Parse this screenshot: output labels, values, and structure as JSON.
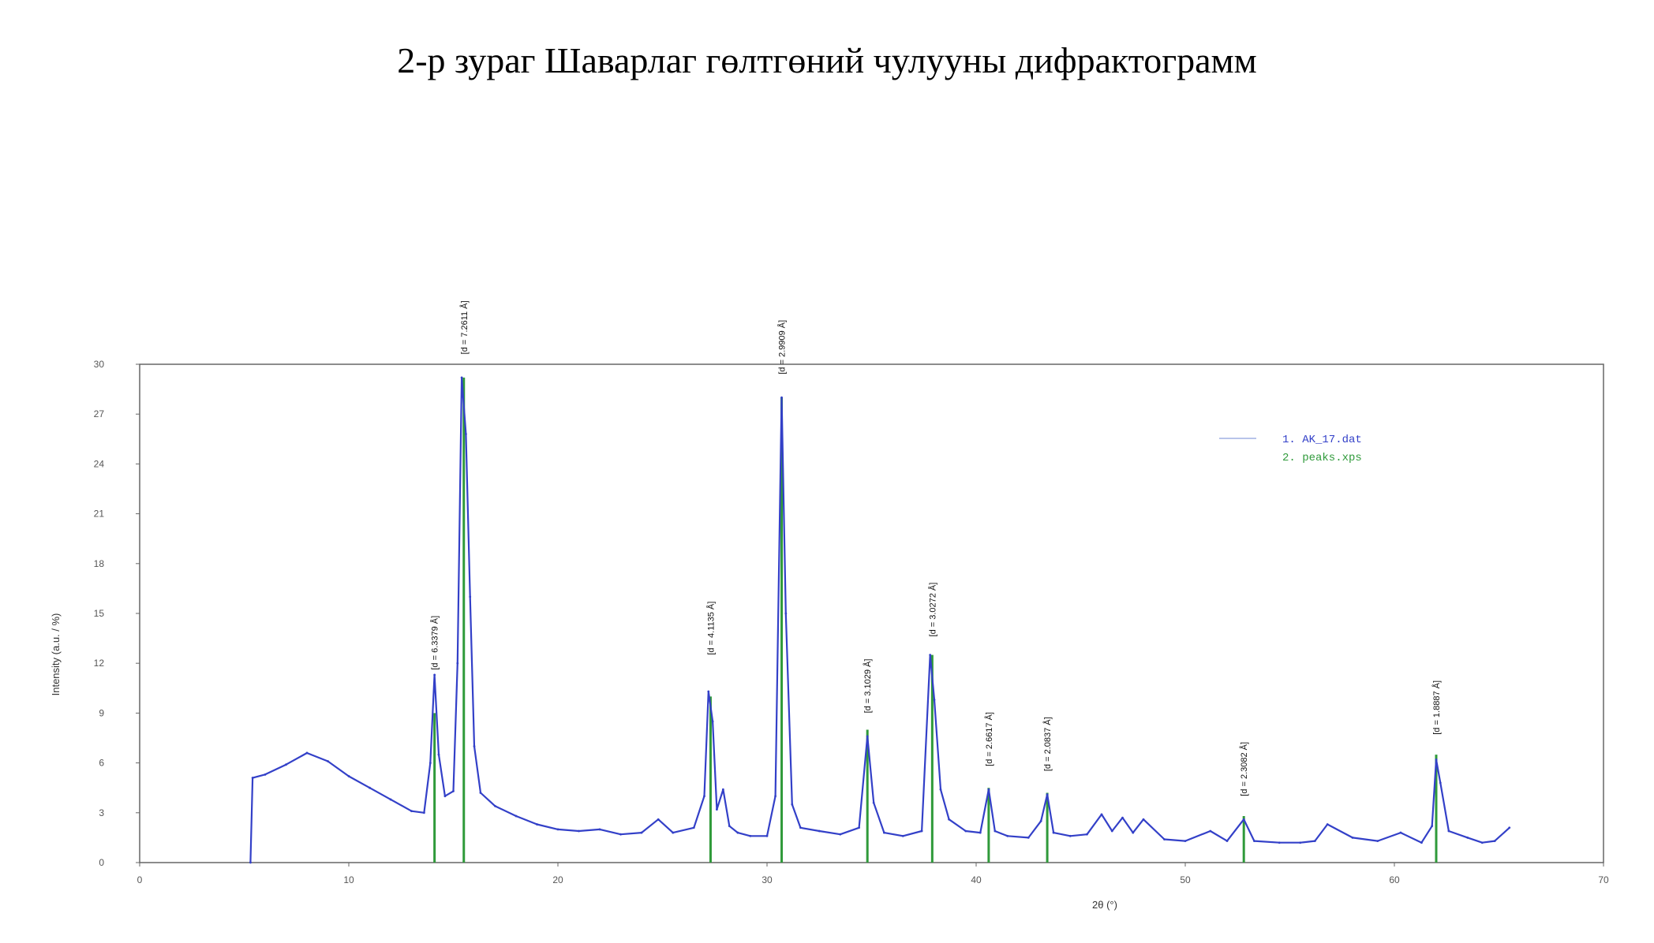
{
  "page": {
    "title": "2-р зураг Шаварлаг гөлтгөний чулууны дифрактограмм"
  },
  "chart_data": {
    "type": "line",
    "xlabel": "2θ (°)",
    "ylabel": "Intensity (a.u. / %)",
    "xlim": [
      0,
      70
    ],
    "ylim": [
      0,
      30
    ],
    "xticks": [
      0,
      10,
      20,
      30,
      40,
      50,
      60,
      70
    ],
    "yticks": [
      0,
      3,
      6,
      9,
      12,
      15,
      18,
      21,
      24,
      27,
      30
    ],
    "grid": false,
    "legend_position": "top-right",
    "colors": {
      "pattern": "#3340c8",
      "peaks": "#2f9a3a"
    },
    "series": [
      {
        "name": "1. AK_17.dat",
        "color": "#3340c8",
        "x": [
          5.3,
          5.4,
          6.0,
          7.0,
          8.0,
          9.0,
          10.0,
          11.0,
          12.0,
          13.0,
          13.6,
          13.9,
          14.1,
          14.3,
          14.6,
          15.0,
          15.2,
          15.4,
          15.6,
          15.8,
          16.0,
          16.3,
          17.0,
          18.0,
          19.0,
          20.0,
          21.0,
          22.0,
          23.0,
          24.0,
          24.8,
          25.5,
          26.5,
          27.0,
          27.2,
          27.4,
          27.6,
          27.9,
          28.2,
          28.6,
          29.2,
          30.0,
          30.4,
          30.7,
          30.9,
          31.2,
          31.6,
          32.5,
          33.5,
          34.4,
          34.8,
          35.1,
          35.6,
          36.5,
          37.4,
          37.8,
          38.0,
          38.3,
          38.7,
          39.5,
          40.2,
          40.6,
          40.9,
          41.5,
          42.5,
          43.1,
          43.4,
          43.7,
          44.5,
          45.3,
          46.0,
          46.5,
          47.0,
          47.5,
          48.0,
          49.0,
          50.0,
          51.2,
          52.0,
          52.8,
          53.3,
          54.5,
          55.5,
          56.2,
          56.8,
          58.0,
          59.2,
          60.3,
          61.3,
          61.8,
          62.0,
          62.2,
          62.6,
          63.5,
          64.2,
          64.8,
          65.5
        ],
        "values": [
          0,
          5.1,
          5.3,
          5.9,
          6.6,
          6.1,
          5.2,
          4.5,
          3.8,
          3.1,
          3.0,
          6.0,
          11.3,
          6.5,
          4.0,
          4.3,
          12.0,
          29.2,
          25.8,
          16.0,
          7.0,
          4.2,
          3.4,
          2.8,
          2.3,
          2.0,
          1.9,
          2.0,
          1.7,
          1.8,
          2.6,
          1.8,
          2.1,
          4.0,
          10.3,
          8.5,
          3.2,
          4.4,
          2.2,
          1.8,
          1.6,
          1.6,
          4.0,
          28.0,
          15.0,
          3.5,
          2.1,
          1.9,
          1.7,
          2.1,
          7.6,
          3.6,
          1.8,
          1.6,
          1.9,
          12.5,
          9.8,
          4.4,
          2.6,
          1.9,
          1.8,
          4.4,
          1.9,
          1.6,
          1.5,
          2.5,
          4.1,
          1.8,
          1.6,
          1.7,
          2.9,
          1.9,
          2.7,
          1.8,
          2.6,
          1.4,
          1.3,
          1.9,
          1.3,
          2.6,
          1.3,
          1.2,
          1.2,
          1.3,
          2.3,
          1.5,
          1.3,
          1.8,
          1.2,
          2.2,
          6.2,
          4.8,
          1.9,
          1.5,
          1.2,
          1.3,
          2.1
        ]
      },
      {
        "name": "2. peaks.xps",
        "color": "#2f9a3a",
        "type": "stick",
        "x": [
          14.1,
          15.5,
          27.3,
          30.7,
          34.8,
          37.9,
          40.6,
          43.4,
          52.8,
          62.0
        ],
        "values": [
          9.0,
          29.2,
          10.0,
          28.0,
          8.0,
          12.5,
          4.5,
          4.2,
          2.8,
          6.5
        ]
      }
    ],
    "peak_labels": [
      {
        "x": 14.1,
        "y": 11.6,
        "text": "[d = 6.3379 Å]"
      },
      {
        "x": 15.5,
        "y": 30.6,
        "text": "[d = 7.2611 Å]"
      },
      {
        "x": 27.3,
        "y": 12.5,
        "text": "[d = 4.1135 Å]"
      },
      {
        "x": 30.7,
        "y": 29.4,
        "text": "[d = 2.9909 Å]"
      },
      {
        "x": 34.8,
        "y": 9.0,
        "text": "[d = 3.1029 Å]"
      },
      {
        "x": 37.9,
        "y": 13.6,
        "text": "[d = 3.0272 Å]"
      },
      {
        "x": 40.6,
        "y": 5.8,
        "text": "[d = 2.6617 Å]"
      },
      {
        "x": 43.4,
        "y": 5.5,
        "text": "[d = 2.0837 Å]"
      },
      {
        "x": 52.8,
        "y": 4.0,
        "text": "[d = 2.3082 Å]"
      },
      {
        "x": 62.0,
        "y": 7.7,
        "text": "[d = 1.8887 Å]"
      }
    ]
  }
}
